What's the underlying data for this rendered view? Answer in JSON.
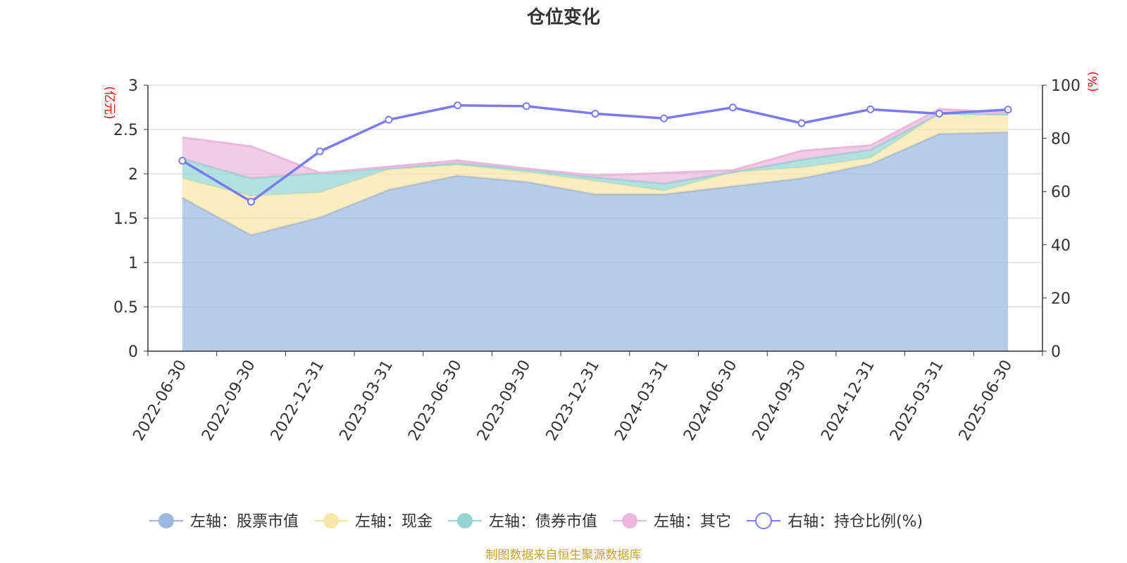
{
  "chart_data": {
    "type": "area",
    "title": "仓位变化",
    "left_axis_unit": "(亿元)",
    "right_axis_unit": "(%)",
    "categories": [
      "2022-06-30",
      "2022-09-30",
      "2022-12-31",
      "2023-03-31",
      "2023-06-30",
      "2023-09-30",
      "2023-12-31",
      "2024-03-31",
      "2024-06-30",
      "2024-09-30",
      "2024-12-31",
      "2025-03-31",
      "2025-06-30"
    ],
    "left_ylim": [
      0,
      3
    ],
    "left_ticks": [
      "0",
      "0.5",
      "1",
      "1.5",
      "2",
      "2.5",
      "3"
    ],
    "right_ylim": [
      0,
      100
    ],
    "right_ticks": [
      "0",
      "20",
      "40",
      "60",
      "80",
      "100"
    ],
    "grid": true,
    "legend_position": "bottom",
    "series": [
      {
        "name": "左轴：股票市值",
        "axis": "left",
        "stacked": true,
        "color": "#9db8e0",
        "values": [
          1.73,
          1.31,
          1.51,
          1.82,
          1.98,
          1.91,
          1.77,
          1.77,
          1.86,
          1.95,
          2.11,
          2.45,
          2.47
        ]
      },
      {
        "name": "左轴：现金",
        "axis": "left",
        "stacked": true,
        "color": "#f8e8a8",
        "values": [
          0.22,
          0.44,
          0.28,
          0.23,
          0.12,
          0.11,
          0.15,
          0.04,
          0.16,
          0.12,
          0.07,
          0.23,
          0.2
        ]
      },
      {
        "name": "左轴：债券市值",
        "axis": "left",
        "stacked": true,
        "color": "#96d4d4",
        "values": [
          0.22,
          0.2,
          0.22,
          0.01,
          0.02,
          0.03,
          0.04,
          0.08,
          0.0,
          0.09,
          0.09,
          0.0,
          0.0
        ]
      },
      {
        "name": "左轴：其它",
        "axis": "left",
        "stacked": true,
        "color": "#eab8dc",
        "values": [
          0.24,
          0.36,
          0.0,
          0.02,
          0.03,
          0.01,
          0.02,
          0.12,
          0.02,
          0.1,
          0.05,
          0.05,
          0.02
        ]
      },
      {
        "name": "右轴：持仓比例(%)",
        "axis": "right",
        "type": "line",
        "color": "#7a7af2",
        "values": [
          71.6,
          56.2,
          75.1,
          87.0,
          92.4,
          92.1,
          89.3,
          87.5,
          91.6,
          85.7,
          90.9,
          89.3,
          90.8
        ]
      }
    ],
    "source_note": "制图数据来自恒生聚源数据库"
  }
}
